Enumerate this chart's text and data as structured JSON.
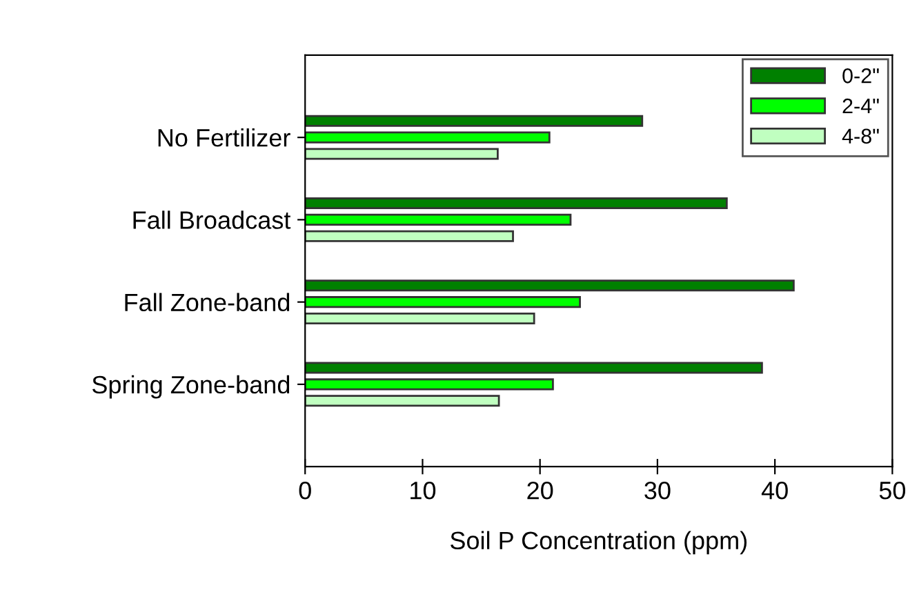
{
  "chart_data": {
    "type": "bar",
    "orientation": "horizontal",
    "xlabel": "Soil P Concentration (ppm)",
    "categories": [
      "No Fertilizer",
      "Fall Broadcast",
      "Fall Zone-band",
      "Spring Zone-band"
    ],
    "series": [
      {
        "name": "0-2\"",
        "color": "#008000",
        "values": [
          28.7,
          35.9,
          41.6,
          38.9
        ]
      },
      {
        "name": "2-4\"",
        "color": "#00ff00",
        "values": [
          20.8,
          22.6,
          23.4,
          21.1
        ]
      },
      {
        "name": "4-8\"",
        "color": "#c0ffc0",
        "values": [
          16.4,
          17.7,
          19.5,
          16.5
        ]
      }
    ],
    "xlim": [
      0,
      50
    ],
    "xticks": [
      0,
      10,
      20,
      30,
      40,
      50
    ],
    "grid": false,
    "legend": "top right"
  }
}
